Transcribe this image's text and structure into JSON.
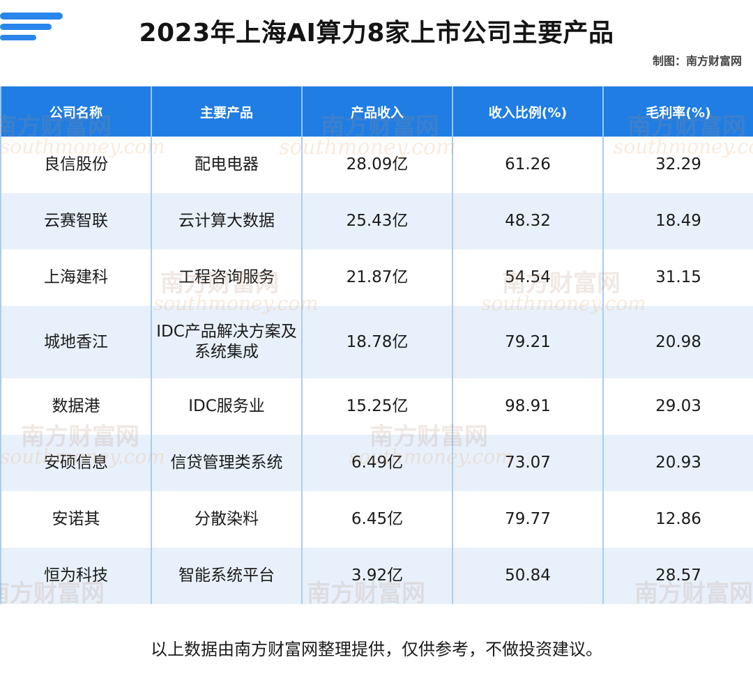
{
  "header": {
    "title": "2023年上海AI算力8家上市公司主要产品",
    "credit": "制图：南方财富网"
  },
  "watermark": {
    "cn": "南方财富网",
    "en": "southmoney.com"
  },
  "chart_data": {
    "type": "table",
    "title": "2023年上海AI算力8家上市公司主要产品",
    "columns": [
      "公司名称",
      "主要产品",
      "产品收入",
      "收入比例(%)",
      "毛利率(%)"
    ],
    "rows": [
      [
        "良信股份",
        "配电电器",
        "28.09亿",
        "61.26",
        "32.29"
      ],
      [
        "云赛智联",
        "云计算大数据",
        "25.43亿",
        "48.32",
        "18.49"
      ],
      [
        "上海建科",
        "工程咨询服务",
        "21.87亿",
        "54.54",
        "31.15"
      ],
      [
        "城地香江",
        "IDC产品解决方案及系统集成",
        "18.78亿",
        "79.21",
        "20.98"
      ],
      [
        "数据港",
        "IDC服务业",
        "15.25亿",
        "98.91",
        "29.03"
      ],
      [
        "安硕信息",
        "信贷管理类系统",
        "6.49亿",
        "73.07",
        "20.93"
      ],
      [
        "安诺其",
        "分散染料",
        "6.45亿",
        "79.77",
        "12.86"
      ],
      [
        "恒为科技",
        "智能系统平台",
        "3.92亿",
        "50.84",
        "28.57"
      ]
    ]
  },
  "footer": {
    "note": "以上数据由南方财富网整理提供，仅供参考，不做投资建议。"
  },
  "colors": {
    "header_bg": "#1f7de3",
    "stripe": "#e8f1fb",
    "logo": "#2a86ea"
  }
}
